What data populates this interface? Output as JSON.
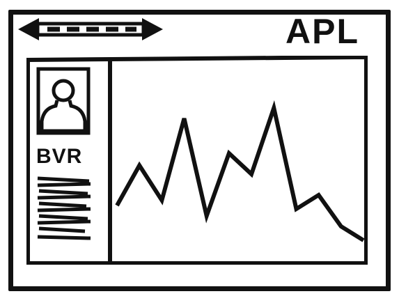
{
  "header": {
    "ticker_symbol": "APL",
    "nav_icon": "double-arrow-icon"
  },
  "profile": {
    "avatar_icon": "user-avatar-icon",
    "name_label": "BVR",
    "bio_icon": "scribble-text-lines"
  },
  "chart": {
    "icon": "price-line-chart",
    "line_color": "#111111"
  },
  "chart_data": {
    "type": "line",
    "title": "",
    "xlabel": "",
    "ylabel": "",
    "x": [
      0,
      1,
      2,
      3,
      4,
      5,
      6,
      7,
      8,
      9,
      10,
      11
    ],
    "series": [
      {
        "values": [
          30,
          53,
          33,
          80,
          24,
          60,
          48,
          86,
          28,
          36,
          18,
          10
        ]
      }
    ],
    "ylim": [
      0,
      100
    ]
  }
}
